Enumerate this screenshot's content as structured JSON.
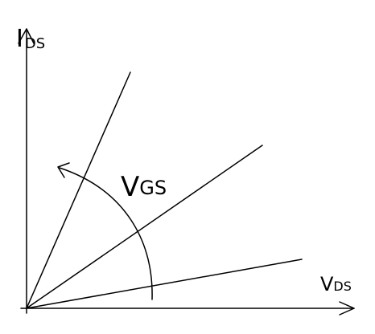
{
  "y_axis_label": {
    "main": "I",
    "sub": "DS"
  },
  "x_axis_label": {
    "main": "V",
    "sub": "DS"
  },
  "curve_label": {
    "main": "V",
    "sub": "GS"
  }
}
